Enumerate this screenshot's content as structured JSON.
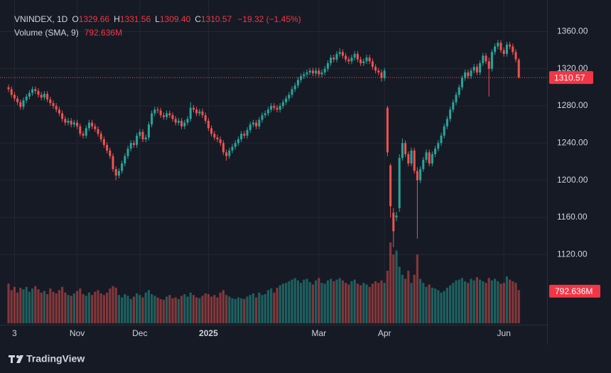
{
  "chart_data": {
    "type": "candlestick",
    "symbol": "VNINDEX, 1D",
    "readout_keys": [
      "O",
      "H",
      "L",
      "C"
    ],
    "last_labels": [
      "1329.66",
      "1331.56",
      "1309.40",
      "1310.57"
    ],
    "change_label": "−19.32 (−1.45%)",
    "volume_title": "Volume (SMA, 9)",
    "volume_sma": 792.636,
    "volume_sma_label": "792.636M",
    "up_color": "#26a69a",
    "down_color": "#ef5350",
    "grid": true,
    "ylim": [
      1046,
      1394
    ],
    "yticks": [
      {
        "value": 1120,
        "label": "1120.00"
      },
      {
        "value": 1160,
        "label": "1160.00"
      },
      {
        "value": 1200,
        "label": "1200.00"
      },
      {
        "value": 1240,
        "label": "1240.00"
      },
      {
        "value": 1280,
        "label": "1280.00"
      },
      {
        "value": 1320,
        "label": "1320.00"
      },
      {
        "value": 1360,
        "label": "1360.00"
      }
    ],
    "volume_lim": [
      0,
      8000
    ],
    "xticks": [
      {
        "value": 2,
        "label": "3"
      },
      {
        "value": 23,
        "label": "Nov"
      },
      {
        "value": 44,
        "label": "Dec"
      },
      {
        "value": 67,
        "label": "2025",
        "bold": true
      },
      {
        "value": 104,
        "label": "Mar"
      },
      {
        "value": 126,
        "label": "Apr"
      },
      {
        "value": 166,
        "label": "Jun"
      }
    ],
    "ohlc": [
      [
        1300,
        1303,
        1295,
        1298
      ],
      [
        1298,
        1301,
        1289,
        1292
      ],
      [
        1292,
        1295,
        1285,
        1288
      ],
      [
        1288,
        1291,
        1281,
        1284
      ],
      [
        1284,
        1287,
        1276,
        1279
      ],
      [
        1279,
        1289,
        1276,
        1286
      ],
      [
        1286,
        1293,
        1283,
        1290
      ],
      [
        1290,
        1297,
        1287,
        1294
      ],
      [
        1294,
        1301,
        1291,
        1298
      ],
      [
        1298,
        1301,
        1293,
        1296
      ],
      [
        1296,
        1299,
        1289,
        1292
      ],
      [
        1292,
        1295,
        1286,
        1289
      ],
      [
        1289,
        1296,
        1286,
        1293
      ],
      [
        1293,
        1296,
        1284,
        1287
      ],
      [
        1287,
        1290,
        1280,
        1283
      ],
      [
        1283,
        1286,
        1277,
        1280
      ],
      [
        1280,
        1283,
        1273,
        1276
      ],
      [
        1276,
        1279,
        1269,
        1272
      ],
      [
        1272,
        1275,
        1263,
        1266
      ],
      [
        1266,
        1269,
        1259,
        1262
      ],
      [
        1262,
        1267,
        1259,
        1264
      ],
      [
        1264,
        1267,
        1257,
        1260
      ],
      [
        1260,
        1265,
        1257,
        1262
      ],
      [
        1262,
        1265,
        1255,
        1258
      ],
      [
        1258,
        1261,
        1247,
        1250
      ],
      [
        1250,
        1253,
        1245,
        1248
      ],
      [
        1248,
        1259,
        1245,
        1256
      ],
      [
        1256,
        1265,
        1253,
        1262
      ],
      [
        1262,
        1265,
        1255,
        1258
      ],
      [
        1258,
        1261,
        1252,
        1255
      ],
      [
        1255,
        1258,
        1247,
        1250
      ],
      [
        1250,
        1253,
        1241,
        1244
      ],
      [
        1244,
        1247,
        1235,
        1238
      ],
      [
        1238,
        1241,
        1229,
        1232
      ],
      [
        1232,
        1235,
        1223,
        1226
      ],
      [
        1226,
        1229,
        1209,
        1212
      ],
      [
        1212,
        1215,
        1200,
        1205
      ],
      [
        1205,
        1213,
        1202,
        1210
      ],
      [
        1210,
        1221,
        1207,
        1218
      ],
      [
        1218,
        1229,
        1215,
        1226
      ],
      [
        1226,
        1237,
        1223,
        1234
      ],
      [
        1234,
        1243,
        1231,
        1240
      ],
      [
        1240,
        1243,
        1235,
        1238
      ],
      [
        1238,
        1251,
        1235,
        1248
      ],
      [
        1248,
        1255,
        1245,
        1252
      ],
      [
        1252,
        1255,
        1241,
        1244
      ],
      [
        1244,
        1249,
        1241,
        1246
      ],
      [
        1246,
        1263,
        1243,
        1260
      ],
      [
        1260,
        1275,
        1257,
        1272
      ],
      [
        1272,
        1279,
        1269,
        1276
      ],
      [
        1276,
        1279,
        1272,
        1275
      ],
      [
        1275,
        1278,
        1267,
        1270
      ],
      [
        1270,
        1273,
        1265,
        1268
      ],
      [
        1268,
        1275,
        1265,
        1272
      ],
      [
        1272,
        1275,
        1267,
        1270
      ],
      [
        1270,
        1273,
        1263,
        1266
      ],
      [
        1266,
        1269,
        1259,
        1262
      ],
      [
        1262,
        1267,
        1259,
        1264
      ],
      [
        1264,
        1267,
        1255,
        1258
      ],
      [
        1258,
        1265,
        1255,
        1262
      ],
      [
        1262,
        1269,
        1259,
        1266
      ],
      [
        1266,
        1284,
        1263,
        1278
      ],
      [
        1278,
        1281,
        1273,
        1276
      ],
      [
        1276,
        1279,
        1269,
        1272
      ],
      [
        1272,
        1277,
        1269,
        1274
      ],
      [
        1274,
        1277,
        1267,
        1270
      ],
      [
        1270,
        1273,
        1261,
        1264
      ],
      [
        1264,
        1267,
        1253,
        1256
      ],
      [
        1256,
        1259,
        1247,
        1250
      ],
      [
        1250,
        1253,
        1243,
        1246
      ],
      [
        1246,
        1249,
        1241,
        1244
      ],
      [
        1244,
        1247,
        1237,
        1240
      ],
      [
        1240,
        1243,
        1227,
        1230
      ],
      [
        1230,
        1233,
        1221,
        1226
      ],
      [
        1226,
        1235,
        1223,
        1232
      ],
      [
        1232,
        1239,
        1229,
        1236
      ],
      [
        1236,
        1243,
        1233,
        1240
      ],
      [
        1240,
        1247,
        1237,
        1244
      ],
      [
        1244,
        1253,
        1241,
        1250
      ],
      [
        1250,
        1253,
        1245,
        1248
      ],
      [
        1248,
        1257,
        1245,
        1254
      ],
      [
        1254,
        1263,
        1251,
        1260
      ],
      [
        1260,
        1265,
        1257,
        1262
      ],
      [
        1262,
        1265,
        1255,
        1258
      ],
      [
        1258,
        1268,
        1255,
        1265
      ],
      [
        1265,
        1273,
        1262,
        1270
      ],
      [
        1270,
        1275,
        1267,
        1272
      ],
      [
        1272,
        1279,
        1269,
        1276
      ],
      [
        1276,
        1283,
        1273,
        1280
      ],
      [
        1280,
        1283,
        1275,
        1278
      ],
      [
        1278,
        1281,
        1273,
        1276
      ],
      [
        1276,
        1283,
        1273,
        1280
      ],
      [
        1280,
        1287,
        1277,
        1284
      ],
      [
        1284,
        1291,
        1281,
        1288
      ],
      [
        1288,
        1295,
        1285,
        1292
      ],
      [
        1292,
        1301,
        1289,
        1298
      ],
      [
        1298,
        1305,
        1295,
        1302
      ],
      [
        1302,
        1311,
        1299,
        1308
      ],
      [
        1308,
        1315,
        1305,
        1312
      ],
      [
        1312,
        1317,
        1309,
        1314
      ],
      [
        1314,
        1319,
        1311,
        1316
      ],
      [
        1316,
        1321,
        1313,
        1318
      ],
      [
        1318,
        1321,
        1312,
        1315
      ],
      [
        1315,
        1321,
        1312,
        1318
      ],
      [
        1318,
        1321,
        1311,
        1314
      ],
      [
        1314,
        1319,
        1311,
        1316
      ],
      [
        1316,
        1323,
        1313,
        1320
      ],
      [
        1320,
        1329,
        1317,
        1326
      ],
      [
        1326,
        1335,
        1323,
        1332
      ],
      [
        1332,
        1335,
        1327,
        1330
      ],
      [
        1330,
        1339,
        1327,
        1336
      ],
      [
        1336,
        1342,
        1333,
        1338
      ],
      [
        1338,
        1341,
        1331,
        1334
      ],
      [
        1334,
        1337,
        1327,
        1330
      ],
      [
        1330,
        1333,
        1325,
        1328
      ],
      [
        1328,
        1335,
        1325,
        1332
      ],
      [
        1332,
        1339,
        1329,
        1336
      ],
      [
        1336,
        1339,
        1327,
        1330
      ],
      [
        1330,
        1333,
        1323,
        1326
      ],
      [
        1326,
        1331,
        1323,
        1328
      ],
      [
        1328,
        1335,
        1325,
        1332
      ],
      [
        1332,
        1335,
        1325,
        1328
      ],
      [
        1328,
        1331,
        1319,
        1322
      ],
      [
        1322,
        1325,
        1315,
        1318
      ],
      [
        1318,
        1321,
        1313,
        1316
      ],
      [
        1316,
        1319,
        1306,
        1310
      ],
      [
        1310,
        1321,
        1307,
        1318
      ],
      [
        1278,
        1280,
        1226,
        1230
      ],
      [
        1216,
        1218,
        1160,
        1172
      ],
      [
        1165,
        1170,
        1128,
        1145
      ],
      [
        1160,
        1166,
        1156,
        1162
      ],
      [
        1170,
        1228,
        1166,
        1224
      ],
      [
        1224,
        1245,
        1221,
        1240
      ],
      [
        1240,
        1243,
        1225,
        1228
      ],
      [
        1228,
        1231,
        1215,
        1218
      ],
      [
        1218,
        1235,
        1215,
        1232
      ],
      [
        1232,
        1235,
        1207,
        1210
      ],
      [
        1210,
        1214,
        1137,
        1200
      ],
      [
        1200,
        1215,
        1197,
        1212
      ],
      [
        1212,
        1225,
        1209,
        1222
      ],
      [
        1222,
        1233,
        1219,
        1230
      ],
      [
        1230,
        1233,
        1215,
        1218
      ],
      [
        1218,
        1231,
        1215,
        1228
      ],
      [
        1228,
        1237,
        1225,
        1234
      ],
      [
        1234,
        1243,
        1231,
        1240
      ],
      [
        1240,
        1251,
        1237,
        1248
      ],
      [
        1248,
        1261,
        1245,
        1258
      ],
      [
        1258,
        1269,
        1255,
        1266
      ],
      [
        1266,
        1279,
        1263,
        1276
      ],
      [
        1276,
        1287,
        1273,
        1284
      ],
      [
        1284,
        1295,
        1281,
        1292
      ],
      [
        1292,
        1303,
        1289,
        1300
      ],
      [
        1300,
        1313,
        1297,
        1310
      ],
      [
        1310,
        1319,
        1307,
        1316
      ],
      [
        1316,
        1319,
        1309,
        1312
      ],
      [
        1312,
        1321,
        1309,
        1318
      ],
      [
        1318,
        1325,
        1315,
        1322
      ],
      [
        1322,
        1325,
        1313,
        1316
      ],
      [
        1316,
        1329,
        1313,
        1326
      ],
      [
        1326,
        1337,
        1323,
        1334
      ],
      [
        1334,
        1337,
        1325,
        1328
      ],
      [
        1328,
        1332,
        1290,
        1320
      ],
      [
        1320,
        1341,
        1317,
        1338
      ],
      [
        1338,
        1347,
        1335,
        1344
      ],
      [
        1344,
        1351,
        1341,
        1348
      ],
      [
        1348,
        1351,
        1337,
        1340
      ],
      [
        1340,
        1343,
        1333,
        1336
      ],
      [
        1336,
        1349,
        1333,
        1346
      ],
      [
        1346,
        1349,
        1341,
        1344
      ],
      [
        1344,
        1347,
        1335,
        1338
      ],
      [
        1338,
        1341,
        1327,
        1330
      ],
      [
        1329.66,
        1331.56,
        1309.4,
        1310.57
      ]
    ],
    "volume": [
      980,
      820,
      900,
      760,
      880,
      840,
      900,
      780,
      860,
      920,
      840,
      760,
      800,
      720,
      860,
      780,
      740,
      820,
      900,
      760,
      700,
      680,
      740,
      800,
      860,
      720,
      680,
      760,
      700,
      780,
      820,
      740,
      700,
      760,
      860,
      920,
      880,
      700,
      640,
      720,
      680,
      600,
      660,
      740,
      700,
      640,
      760,
      820,
      720,
      680,
      640,
      600,
      580,
      660,
      700,
      620,
      640,
      600,
      680,
      720,
      660,
      760,
      700,
      640,
      620,
      680,
      740,
      720,
      660,
      700,
      640,
      760,
      820,
      700,
      660,
      620,
      600,
      640,
      620,
      600,
      660,
      700,
      740,
      640,
      760,
      700,
      720,
      820,
      860,
      760,
      880,
      940,
      980,
      1000,
      1040,
      1080,
      1120,
      1060,
      1000,
      1080,
      1100,
      1020,
      960,
      1060,
      1120,
      1000,
      980,
      1060,
      1100,
      1040,
      1080,
      1120,
      1060,
      1000,
      960,
      1040,
      1080,
      980,
      940,
      1000,
      960,
      900,
      980,
      1040,
      1000,
      1060,
      1000,
      1300,
      2000,
      1700,
      1800,
      1400,
      1200,
      1100,
      1300,
      1000,
      1200,
      1700,
      1100,
      1000,
      900,
      960,
      880,
      860,
      820,
      760,
      800,
      880,
      940,
      1000,
      1060,
      1080,
      1120,
      1040,
      1000,
      1100,
      1060,
      1140,
      1080,
      1040,
      1000,
      1120,
      1060,
      1100,
      1040,
      980,
      1000,
      1160,
      1080,
      1040,
      1000,
      820
    ]
  }
}
